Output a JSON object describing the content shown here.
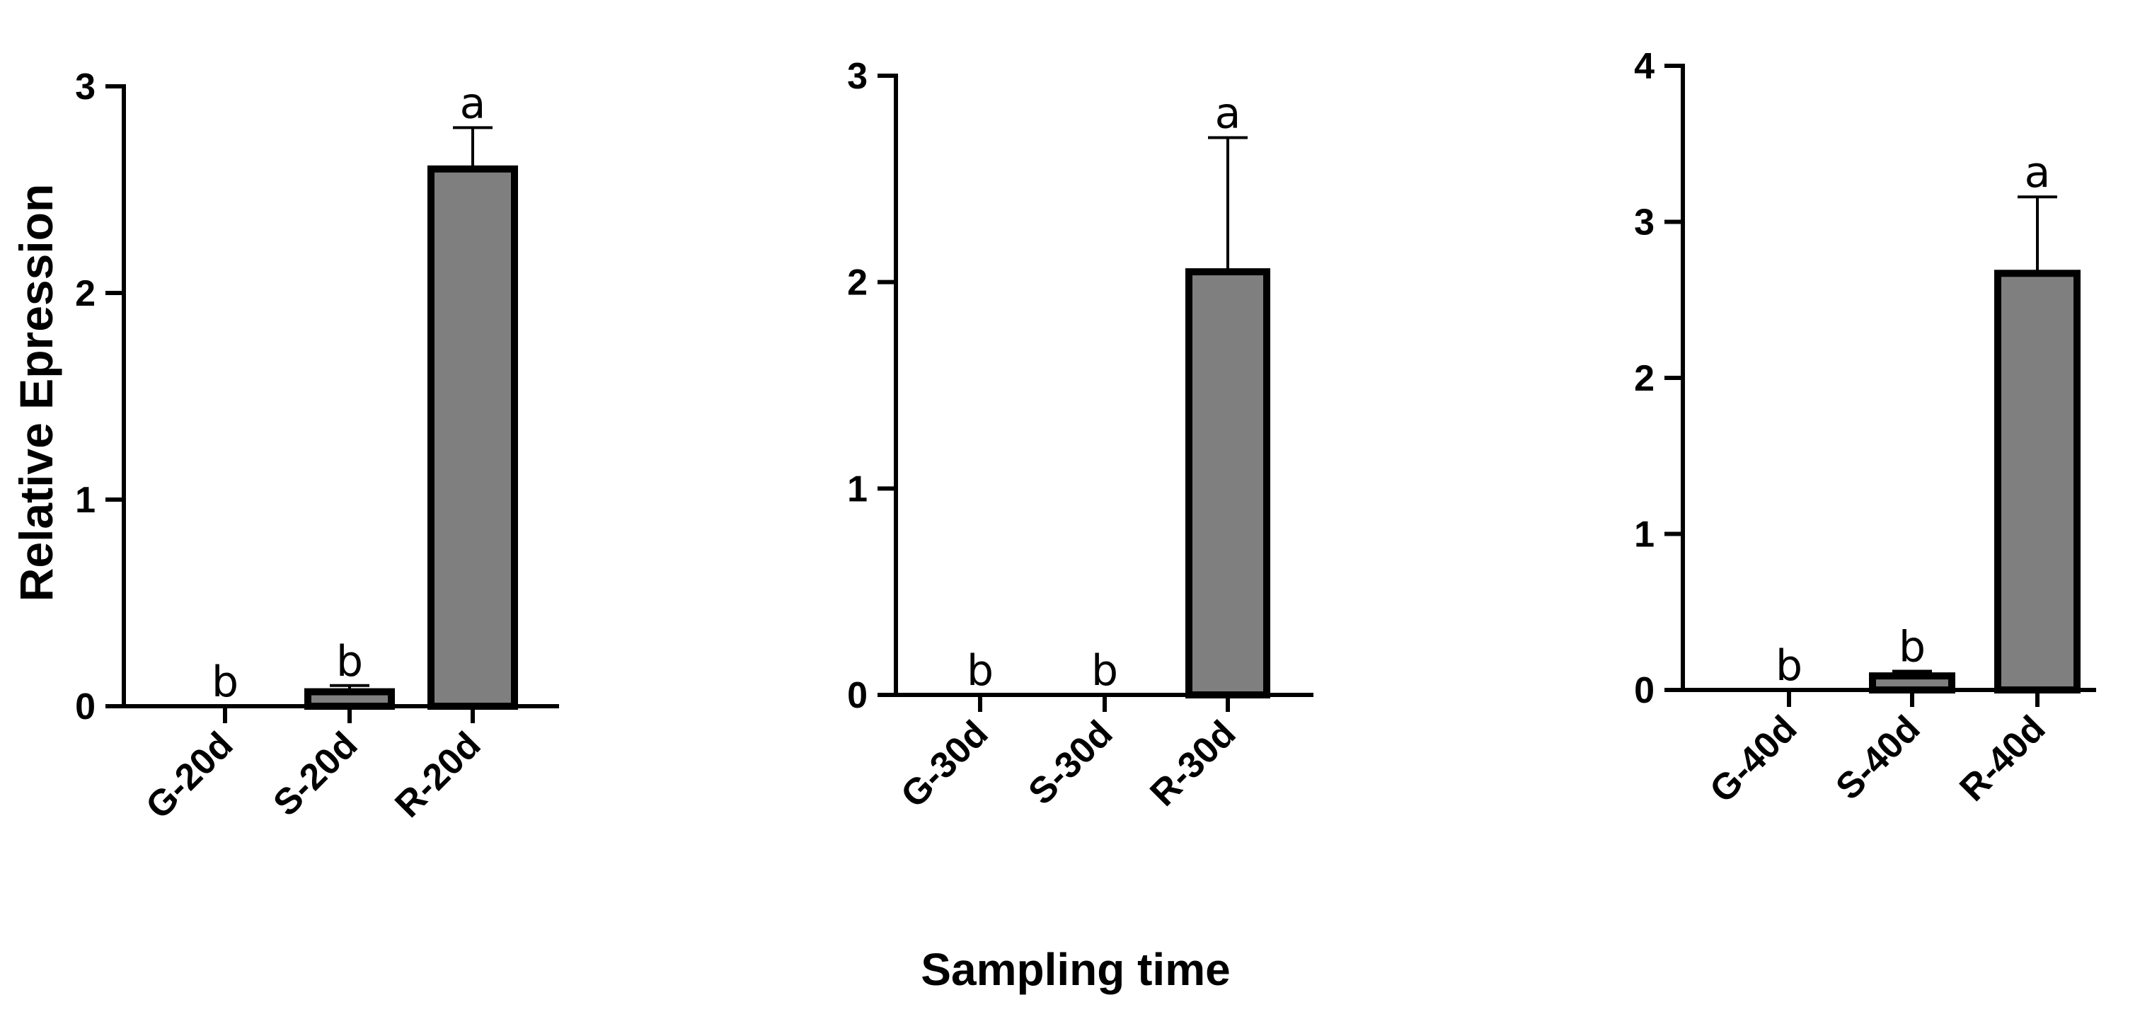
{
  "figure": {
    "ylabel": "Relative Epression",
    "xlabel": "Sampling time"
  },
  "chart_data": [
    {
      "type": "bar",
      "categories": [
        "G-20d",
        "S-20d",
        "R-20d"
      ],
      "values": [
        0.0,
        0.07,
        2.6
      ],
      "errors": [
        0.0,
        0.03,
        0.2
      ],
      "significance": [
        "b",
        "b",
        "a"
      ],
      "ylim": [
        0,
        3
      ],
      "yticks": [
        0,
        1,
        2,
        3
      ],
      "ylabel": "Relative Epression",
      "bar_color": "#7f7f7f"
    },
    {
      "type": "bar",
      "categories": [
        "G-30d",
        "S-30d",
        "R-30d"
      ],
      "values": [
        0.0,
        0.0,
        2.05
      ],
      "errors": [
        0.0,
        0.0,
        0.65
      ],
      "significance": [
        "b",
        "b",
        "a"
      ],
      "ylim": [
        0,
        3
      ],
      "yticks": [
        0,
        1,
        2,
        3
      ],
      "bar_color": "#7f7f7f"
    },
    {
      "type": "bar",
      "categories": [
        "G-40d",
        "S-40d",
        "R-40d"
      ],
      "values": [
        0.0,
        0.09,
        2.67
      ],
      "errors": [
        0.0,
        0.03,
        0.49
      ],
      "significance": [
        "b",
        "b",
        "a"
      ],
      "ylim": [
        0,
        4
      ],
      "yticks": [
        0,
        1,
        2,
        3,
        4
      ],
      "bar_color": "#7f7f7f"
    }
  ]
}
